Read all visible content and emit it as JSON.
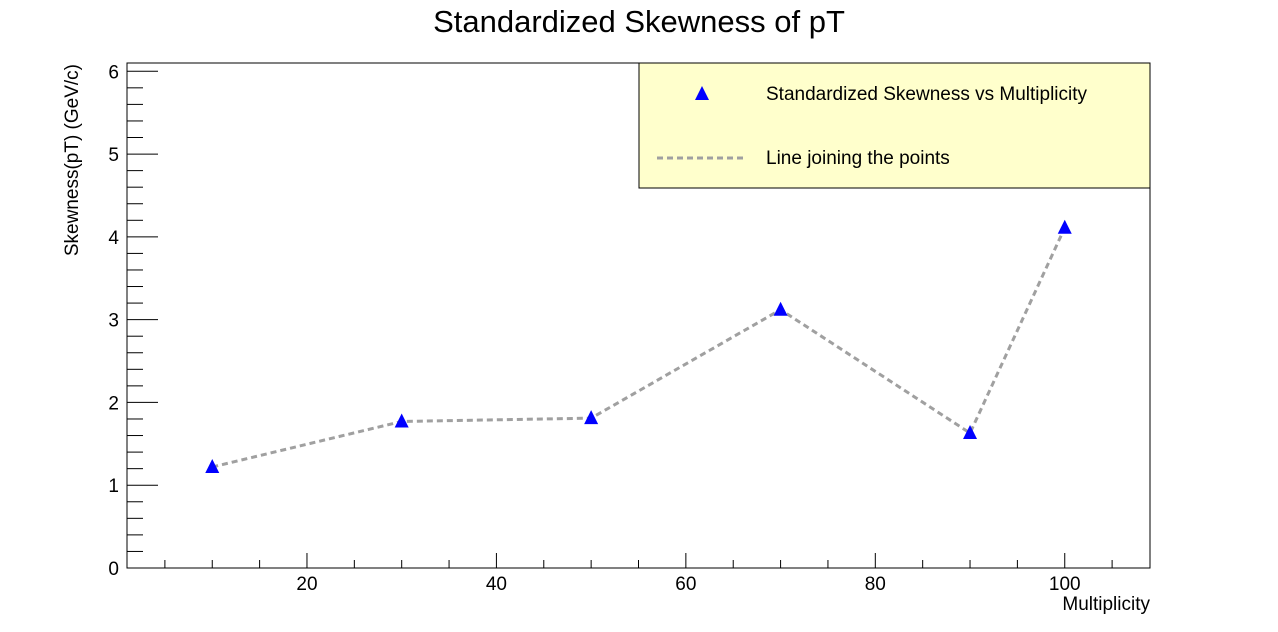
{
  "chart_data": {
    "type": "scatter",
    "title": "Standardized Skewness of pT",
    "xlabel": "Multiplicity",
    "ylabel": "Skewness(pT) (GeV/c)",
    "xlim": [
      1,
      109
    ],
    "ylim": [
      0,
      6.1
    ],
    "x_ticks": [
      20,
      40,
      60,
      80,
      100
    ],
    "y_ticks": [
      0,
      1,
      2,
      3,
      4,
      5,
      6
    ],
    "grid": false,
    "legend_position": "top-right",
    "series": [
      {
        "name": "Standardized Skewness vs Multiplicity",
        "marker": "triangle",
        "color": "#0000ff",
        "x": [
          10,
          30,
          50,
          70,
          90,
          100
        ],
        "y": [
          1.22,
          1.77,
          1.81,
          3.12,
          1.63,
          4.11
        ]
      }
    ],
    "line": {
      "name": "Line joining the points",
      "style": "dashed",
      "color": "#a0a0a0"
    },
    "legend": {
      "background": "#ffffcc",
      "entries": [
        "Standardized Skewness vs Multiplicity",
        "Line joining the points"
      ]
    }
  }
}
